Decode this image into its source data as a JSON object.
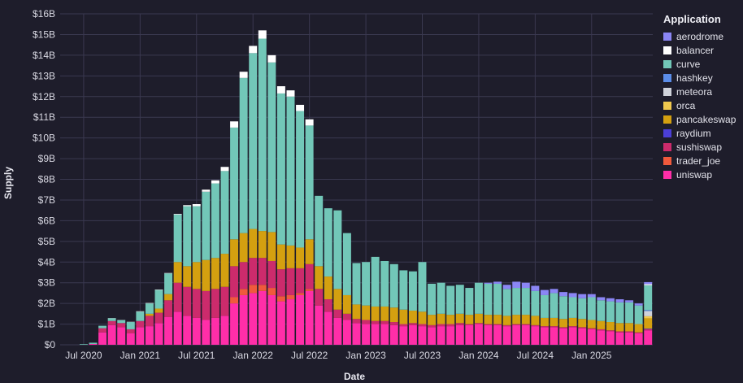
{
  "chart_data": {
    "type": "bar",
    "stacked": true,
    "title": "",
    "xlabel": "Date",
    "ylabel": "Supply",
    "ylim": [
      0,
      16
    ],
    "y_tick_labels": [
      "$0",
      "$1B",
      "$2B",
      "$3B",
      "$4B",
      "$5B",
      "$6B",
      "$7B",
      "$8B",
      "$9B",
      "$10B",
      "$11B",
      "$12B",
      "$13B",
      "$14B",
      "$15B",
      "$16B"
    ],
    "x_tick_labels": [
      "Jul 2020",
      "Jan 2021",
      "Jul 2021",
      "Jan 2022",
      "Jul 2022",
      "Jan 2023",
      "Jul 2023",
      "Jan 2024",
      "Jul 2024",
      "Jan 2025"
    ],
    "x_tick_month_index": [
      2,
      8,
      14,
      20,
      26,
      32,
      38,
      44,
      50,
      56
    ],
    "start_month": "2020-05",
    "grid": true,
    "legend_title": "Application",
    "legend_position": "right",
    "series": [
      {
        "name": "aerodrome",
        "color": "#8b86f5",
        "values": [
          0,
          0,
          0,
          0,
          0,
          0,
          0,
          0,
          0,
          0,
          0,
          0,
          0,
          0,
          0,
          0,
          0,
          0,
          0,
          0,
          0,
          0,
          0,
          0,
          0,
          0,
          0,
          0,
          0,
          0,
          0,
          0,
          0,
          0,
          0,
          0,
          0,
          0,
          0,
          0,
          0,
          0,
          0,
          0,
          0,
          0.05,
          0.1,
          0.2,
          0.3,
          0.25,
          0.25,
          0.25,
          0.2,
          0.2,
          0.2,
          0.2,
          0.15,
          0.15,
          0.15,
          0.15,
          0.1,
          0.1,
          0.1
        ]
      },
      {
        "name": "balancer",
        "color": "#ffffff",
        "values": [
          0,
          0,
          0,
          0,
          0,
          0.01,
          0.01,
          0.01,
          0.02,
          0.02,
          0.02,
          0.02,
          0.03,
          0.05,
          0.1,
          0.1,
          0.15,
          0.2,
          0.3,
          0.3,
          0.35,
          0.4,
          0.35,
          0.35,
          0.3,
          0.3,
          0.3,
          0,
          0,
          0,
          0,
          0,
          0,
          0,
          0,
          0,
          0,
          0,
          0,
          0,
          0,
          0,
          0,
          0,
          0,
          0,
          0,
          0,
          0,
          0,
          0,
          0,
          0,
          0,
          0,
          0,
          0,
          0,
          0,
          0,
          0,
          0,
          0.05
        ]
      },
      {
        "name": "curve",
        "color": "#72c7b8",
        "values": [
          0,
          0,
          0.03,
          0.06,
          0.12,
          0.13,
          0.14,
          0.35,
          0.45,
          0.5,
          0.9,
          1.0,
          2.3,
          2.9,
          2.7,
          3.3,
          3.6,
          4.0,
          5.4,
          7.5,
          8.5,
          9.3,
          8.2,
          7.3,
          7.2,
          6.6,
          5.5,
          3.4,
          3.3,
          3.8,
          3.0,
          2.0,
          2.1,
          2.4,
          2.2,
          2.1,
          1.9,
          1.9,
          2.4,
          1.5,
          1.5,
          1.4,
          1.4,
          1.3,
          1.5,
          1.5,
          1.5,
          1.3,
          1.3,
          1.3,
          1.2,
          1.1,
          1.2,
          1.1,
          1.0,
          1.0,
          1.1,
          1.0,
          1.0,
          1.0,
          1.0,
          0.9,
          1.2
        ]
      },
      {
        "name": "hashkey",
        "color": "#5b8de8",
        "values": [
          0,
          0,
          0,
          0,
          0,
          0,
          0,
          0,
          0,
          0,
          0,
          0,
          0,
          0,
          0,
          0,
          0,
          0,
          0,
          0,
          0,
          0,
          0,
          0,
          0,
          0,
          0,
          0,
          0,
          0,
          0,
          0,
          0,
          0,
          0,
          0,
          0,
          0,
          0,
          0,
          0,
          0,
          0,
          0,
          0,
          0,
          0,
          0,
          0,
          0,
          0,
          0,
          0,
          0,
          0,
          0,
          0,
          0,
          0,
          0,
          0,
          0,
          0.05
        ]
      },
      {
        "name": "meteora",
        "color": "#cfd2da",
        "values": [
          0,
          0,
          0,
          0,
          0,
          0,
          0,
          0,
          0,
          0,
          0,
          0,
          0,
          0,
          0,
          0,
          0,
          0,
          0,
          0,
          0,
          0,
          0,
          0,
          0,
          0,
          0,
          0,
          0,
          0,
          0,
          0,
          0,
          0,
          0,
          0,
          0,
          0,
          0,
          0,
          0,
          0,
          0,
          0,
          0,
          0,
          0,
          0,
          0,
          0,
          0,
          0,
          0,
          0,
          0,
          0,
          0,
          0,
          0,
          0,
          0,
          0,
          0.25
        ]
      },
      {
        "name": "orca",
        "color": "#f0c84e",
        "values": [
          0,
          0,
          0,
          0,
          0,
          0,
          0,
          0,
          0,
          0,
          0,
          0,
          0,
          0,
          0,
          0,
          0,
          0,
          0,
          0,
          0,
          0,
          0,
          0,
          0,
          0,
          0,
          0,
          0,
          0,
          0,
          0,
          0,
          0,
          0,
          0,
          0,
          0,
          0,
          0,
          0,
          0,
          0,
          0,
          0,
          0,
          0,
          0,
          0,
          0,
          0,
          0,
          0,
          0,
          0,
          0,
          0,
          0,
          0,
          0,
          0,
          0,
          0.1
        ]
      },
      {
        "name": "pancakeswap",
        "color": "#d4a010",
        "values": [
          0,
          0,
          0,
          0,
          0,
          0,
          0,
          0,
          0,
          0.1,
          0.2,
          0.3,
          1.0,
          1.0,
          1.3,
          1.5,
          1.5,
          1.6,
          1.3,
          1.4,
          1.4,
          1.3,
          1.4,
          1.2,
          1.1,
          1.0,
          1.2,
          1.1,
          1.1,
          1.0,
          0.9,
          0.7,
          0.7,
          0.7,
          0.7,
          0.7,
          0.7,
          0.6,
          0.6,
          0.5,
          0.5,
          0.45,
          0.45,
          0.45,
          0.45,
          0.45,
          0.45,
          0.45,
          0.45,
          0.45,
          0.45,
          0.4,
          0.4,
          0.4,
          0.4,
          0.4,
          0.4,
          0.4,
          0.4,
          0.4,
          0.4,
          0.4,
          0.5
        ]
      },
      {
        "name": "raydium",
        "color": "#4b3fd6",
        "values": [
          0,
          0,
          0,
          0,
          0,
          0,
          0,
          0,
          0,
          0,
          0,
          0,
          0,
          0,
          0,
          0,
          0,
          0,
          0,
          0,
          0,
          0,
          0,
          0,
          0,
          0,
          0,
          0,
          0,
          0,
          0,
          0,
          0,
          0,
          0,
          0,
          0,
          0,
          0,
          0,
          0,
          0,
          0,
          0,
          0,
          0,
          0,
          0,
          0,
          0,
          0,
          0,
          0,
          0,
          0,
          0,
          0,
          0,
          0,
          0,
          0,
          0,
          0.03
        ]
      },
      {
        "name": "sushiswap",
        "color": "#cc2b6c",
        "values": [
          0,
          0,
          0,
          0,
          0.2,
          0.2,
          0.2,
          0.2,
          0.3,
          0.5,
          0.5,
          0.8,
          1.4,
          1.4,
          1.4,
          1.4,
          1.4,
          1.4,
          1.5,
          1.3,
          1.3,
          1.3,
          1.3,
          1.3,
          1.3,
          1.2,
          1.2,
          0.8,
          0.6,
          0.4,
          0.3,
          0.2,
          0.2,
          0.15,
          0.15,
          0.15,
          0.1,
          0.1,
          0.1,
          0.1,
          0.1,
          0.1,
          0.1,
          0.05,
          0.05,
          0.05,
          0.05,
          0.05,
          0.05,
          0.05,
          0.05,
          0.05,
          0.05,
          0.05,
          0.05,
          0.05,
          0.05,
          0.05,
          0.05,
          0.05,
          0.05,
          0.05,
          0.05
        ]
      },
      {
        "name": "trader_joe",
        "color": "#f05a3c",
        "values": [
          0,
          0,
          0,
          0,
          0,
          0,
          0,
          0,
          0,
          0,
          0,
          0,
          0,
          0,
          0,
          0,
          0,
          0,
          0.3,
          0.3,
          0.4,
          0.3,
          0.35,
          0.25,
          0.2,
          0.1,
          0.1,
          0,
          0,
          0,
          0,
          0,
          0,
          0,
          0,
          0,
          0,
          0,
          0,
          0,
          0,
          0,
          0,
          0,
          0,
          0,
          0,
          0,
          0,
          0,
          0,
          0,
          0,
          0,
          0,
          0,
          0,
          0,
          0,
          0,
          0,
          0,
          0
        ]
      },
      {
        "name": "uniswap",
        "color": "#ff2ea8",
        "values": [
          0,
          0,
          0,
          0.04,
          0.6,
          0.95,
          0.85,
          0.55,
          0.85,
          0.9,
          1.05,
          1.35,
          1.6,
          1.4,
          1.3,
          1.2,
          1.3,
          1.4,
          2.0,
          2.4,
          2.5,
          2.6,
          2.4,
          2.1,
          2.2,
          2.4,
          2.6,
          1.9,
          1.6,
          1.3,
          1.2,
          1.05,
          1.0,
          1.0,
          1.0,
          0.95,
          0.9,
          0.95,
          0.9,
          0.85,
          0.9,
          0.9,
          0.95,
          0.95,
          1.0,
          0.95,
          0.95,
          0.9,
          0.95,
          0.95,
          0.9,
          0.85,
          0.85,
          0.8,
          0.85,
          0.8,
          0.75,
          0.7,
          0.65,
          0.6,
          0.6,
          0.55,
          0.7
        ]
      }
    ]
  }
}
